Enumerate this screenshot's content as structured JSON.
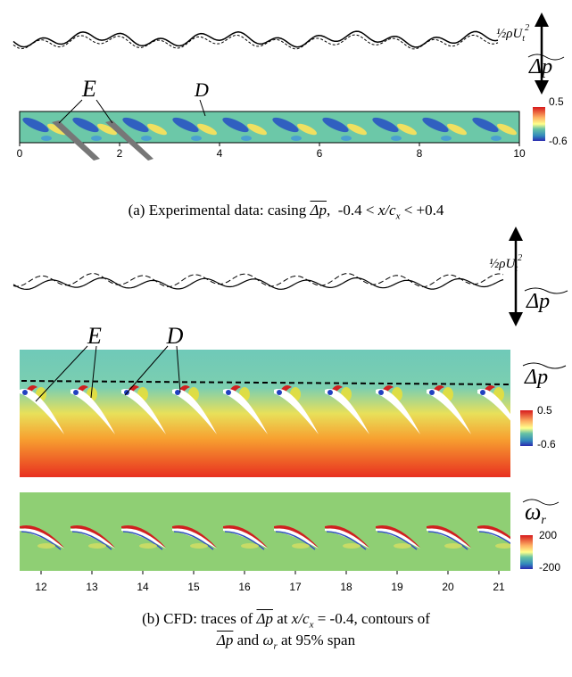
{
  "panel_a": {
    "trace_scale": {
      "base": "½ρU",
      "sub": "t",
      "sup": "2"
    },
    "symbol": "Δp",
    "markers": {
      "e": "E",
      "d": "D"
    },
    "colorbar": {
      "max": 0.5,
      "min": -0.6
    },
    "ticks": [
      0,
      2,
      4,
      6,
      8,
      10
    ],
    "caption": {
      "prefix": "(a) Experimental data: casing ",
      "symbol": "Δp",
      "mid": ",  -0.4 < ",
      "var": "x/c",
      "var_sub": "x",
      "suffix": " < +0.4"
    }
  },
  "panel_b": {
    "trace_scale": {
      "base": "½ρU",
      "sub": "t",
      "sup": "2"
    },
    "trace_symbol": "Δp",
    "markers": {
      "e": "E",
      "d": "D"
    },
    "contour_symbol": "Δp",
    "contour_colorbar": {
      "max": 0.5,
      "min": -0.6
    },
    "vorticity_symbol": "ω",
    "vorticity_sub": "r",
    "vorticity_colorbar": {
      "max": 200,
      "min": -200
    },
    "ticks": [
      12,
      13,
      14,
      15,
      16,
      17,
      18,
      19,
      20,
      21
    ],
    "caption": {
      "line1_prefix": "(b) CFD: traces of ",
      "symbol": "Δp",
      "at": " at ",
      "var": "x/c",
      "var_sub": "x",
      "line1_suffix": " = -0.4, contours of",
      "line2_symbol": "Δp",
      "and": " and ",
      "omega": "ω",
      "omega_sub": "r",
      "line2_suffix": " at 95% span"
    }
  }
}
